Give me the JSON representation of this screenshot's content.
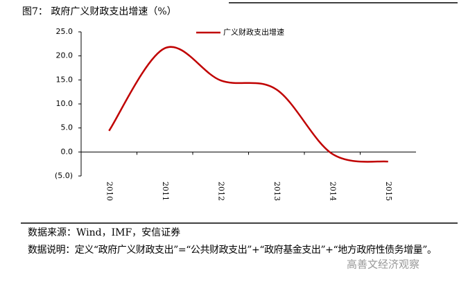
{
  "chart_data": {
    "type": "line",
    "title": "图7：  政府广义财政支出增速（%）",
    "categories": [
      "2010",
      "2011",
      "2012",
      "2013",
      "2014",
      "2015"
    ],
    "series": [
      {
        "name": "广义财政支出增速",
        "color": "#c00000",
        "values": [
          4.4,
          21.6,
          14.9,
          13.0,
          -0.4,
          -2.0
        ]
      }
    ],
    "ylim": [
      -5,
      25
    ],
    "yticks": [
      {
        "value": -5,
        "label": "(5.0)"
      },
      {
        "value": 0,
        "label": "0.0"
      },
      {
        "value": 5,
        "label": "5.0"
      },
      {
        "value": 10,
        "label": "10.0"
      },
      {
        "value": 15,
        "label": "15.0"
      },
      {
        "value": 20,
        "label": "20.0"
      },
      {
        "value": 25,
        "label": "25.0"
      }
    ],
    "legend": "top-center",
    "source": "数据来源：Wind，IMF，安信证券",
    "note": "数据说明：定义“政府广义财政支出”=“公共财政支出”+“政府基金支出”+“地方政府性债务增量”。",
    "watermark": "高善文经济观察"
  }
}
